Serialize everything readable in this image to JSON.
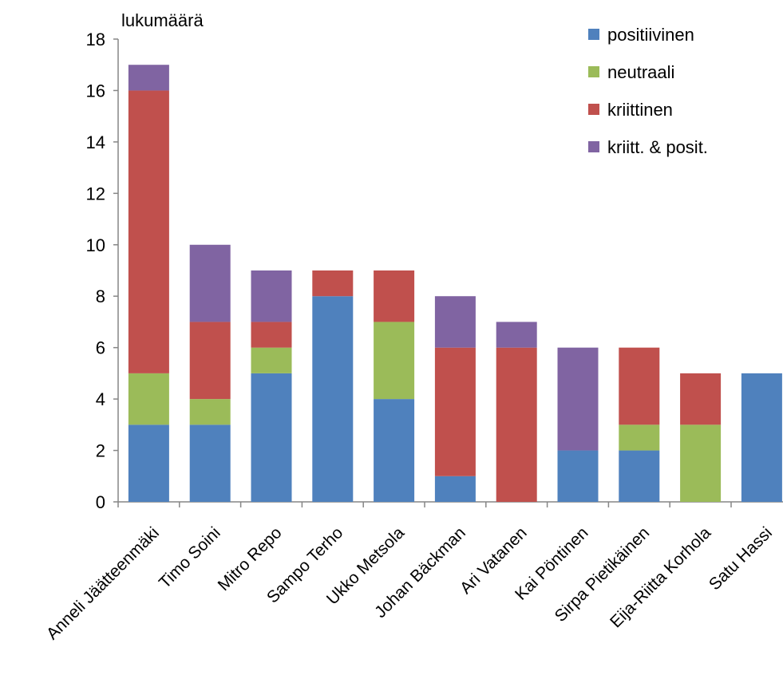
{
  "chart_data": {
    "type": "bar",
    "stacked": true,
    "title": "",
    "xlabel": "",
    "ylabel": "lukumäärä",
    "ylim": [
      0,
      18
    ],
    "yticks": [
      0,
      2,
      4,
      6,
      8,
      10,
      12,
      14,
      16,
      18
    ],
    "grid": false,
    "legend_position": "top-right",
    "categories": [
      "Anneli Jäätteenmäki",
      "Timo Soini",
      "Mitro Repo",
      "Sampo Terho",
      "Ukko Metsola",
      "Johan Bäckman",
      "Ari Vatanen",
      "Kai Pöntinen",
      "Sirpa Pietikäinen",
      "Eija-Riitta Korhola",
      "Satu Hassi"
    ],
    "series": [
      {
        "name": "positiivinen",
        "color": "#4F81BD",
        "values": [
          3,
          3,
          5,
          8,
          4,
          1,
          0,
          2,
          2,
          0,
          5
        ]
      },
      {
        "name": "neutraali",
        "color": "#9BBB59",
        "values": [
          2,
          1,
          1,
          0,
          3,
          0,
          0,
          0,
          1,
          3,
          0
        ]
      },
      {
        "name": "kriittinen",
        "color": "#C0504D",
        "values": [
          11,
          3,
          1,
          1,
          2,
          5,
          6,
          0,
          3,
          2,
          0
        ]
      },
      {
        "name": "kriitt. & posit.",
        "color": "#8064A2",
        "values": [
          1,
          3,
          2,
          0,
          0,
          2,
          1,
          4,
          0,
          0,
          0
        ]
      }
    ]
  }
}
